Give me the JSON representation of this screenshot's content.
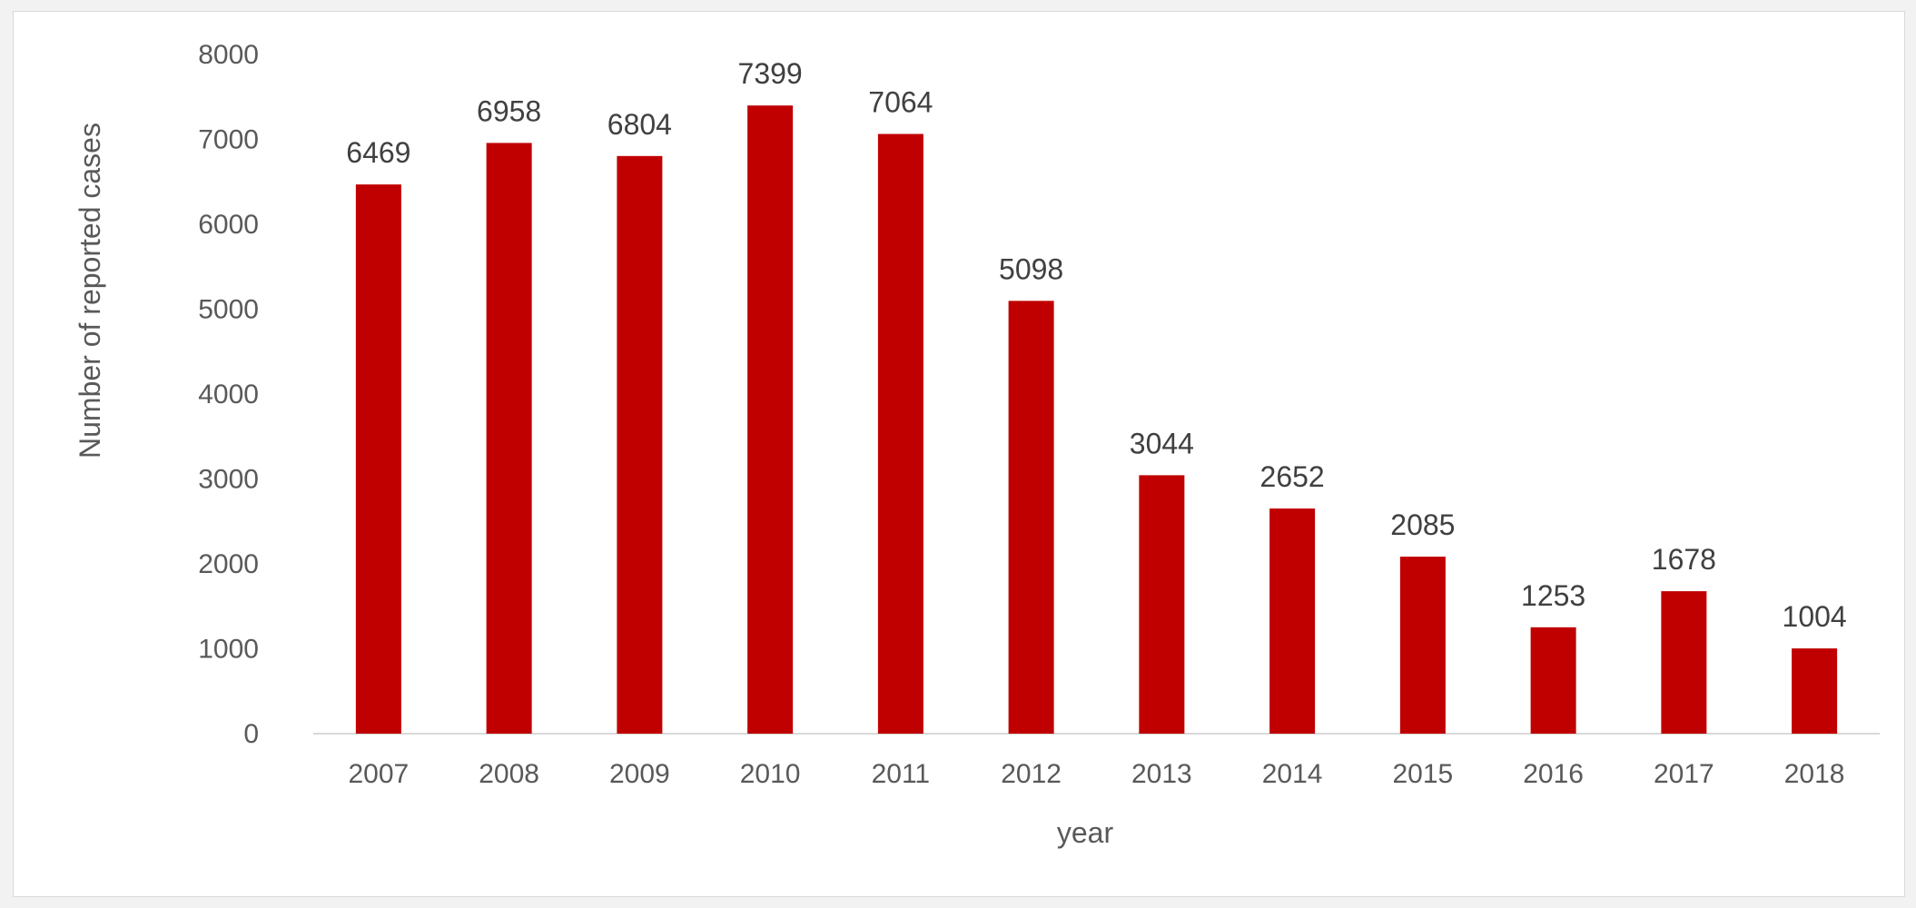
{
  "chart_data": {
    "type": "bar",
    "title": "",
    "xlabel": "year",
    "ylabel": "Number of reported cases",
    "categories": [
      "2007",
      "2008",
      "2009",
      "2010",
      "2011",
      "2012",
      "2013",
      "2014",
      "2015",
      "2016",
      "2017",
      "2018"
    ],
    "values": [
      6469,
      6958,
      6804,
      7399,
      7064,
      5098,
      3044,
      2652,
      2085,
      1253,
      1678,
      1004
    ],
    "ylim": [
      0,
      8000
    ],
    "yticks": [
      "0",
      "1000",
      "2000",
      "3000",
      "4000",
      "5000",
      "6000",
      "7000",
      "8000"
    ],
    "data_labels": [
      "6469",
      "6958",
      "6804",
      "7399",
      "7064",
      "5098",
      "3044",
      "2652",
      "2085",
      "1253",
      "1678",
      "1004"
    ],
    "grid": false,
    "legend": "none",
    "bar_color": "#c00000",
    "axis_color": "#d9d9d9",
    "text_color": "#595959"
  }
}
